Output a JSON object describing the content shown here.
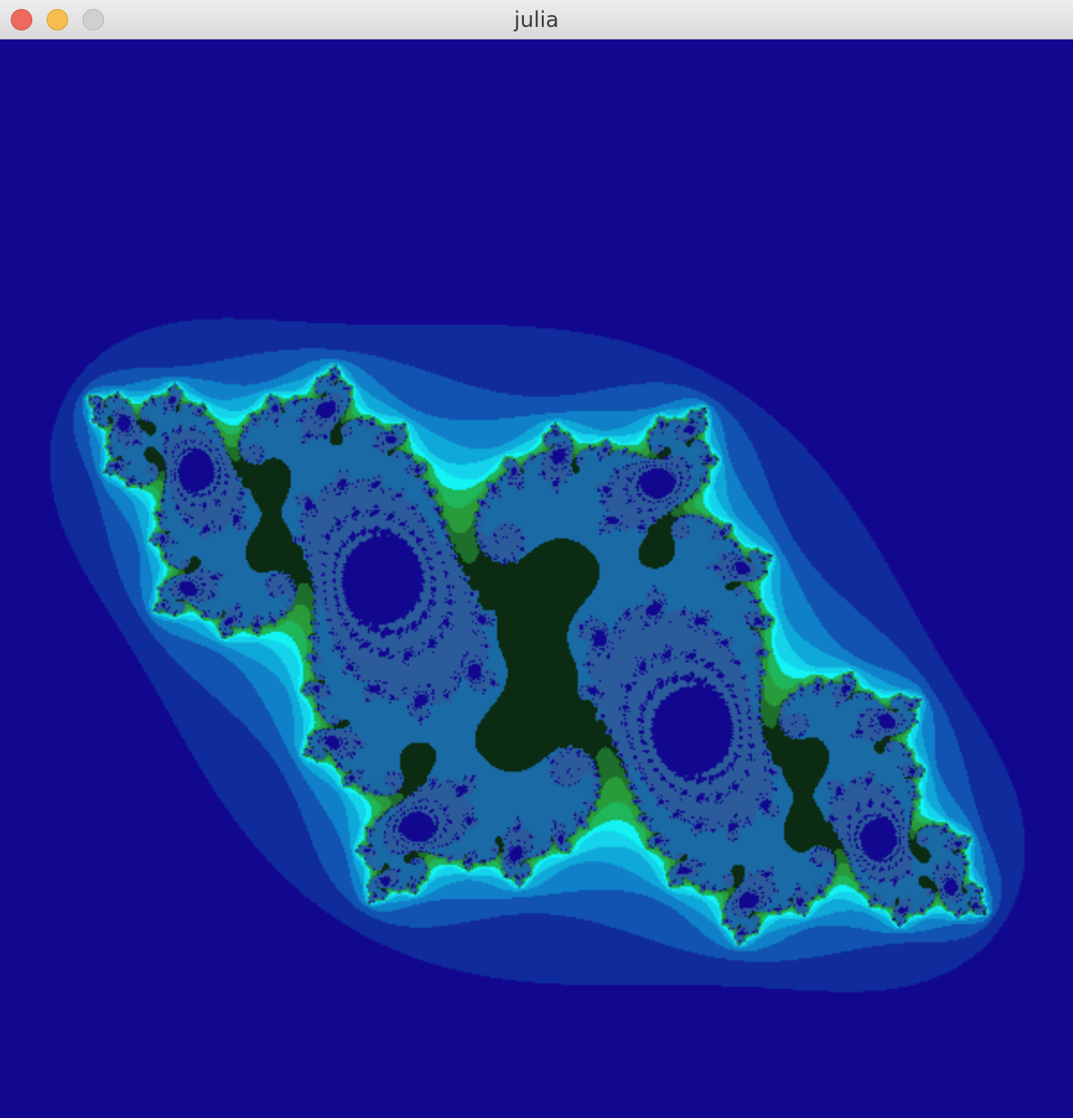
{
  "window": {
    "title": "julia"
  },
  "controls": {
    "close": "close-icon",
    "minimize": "minimize-icon",
    "zoom": "zoom-icon"
  },
  "fractal": {
    "type": "julia-set",
    "palette": [
      "#12088f",
      "#102b9b",
      "#1253b1",
      "#1081c8",
      "#0fa9d9",
      "#14d3ea",
      "#13f3f3",
      "#1fb65c",
      "#2a9b3b",
      "#1e6f2b",
      "#0b2b12",
      "#0a0a0a",
      "#1a6aa5",
      "#2b5b9a"
    ]
  }
}
